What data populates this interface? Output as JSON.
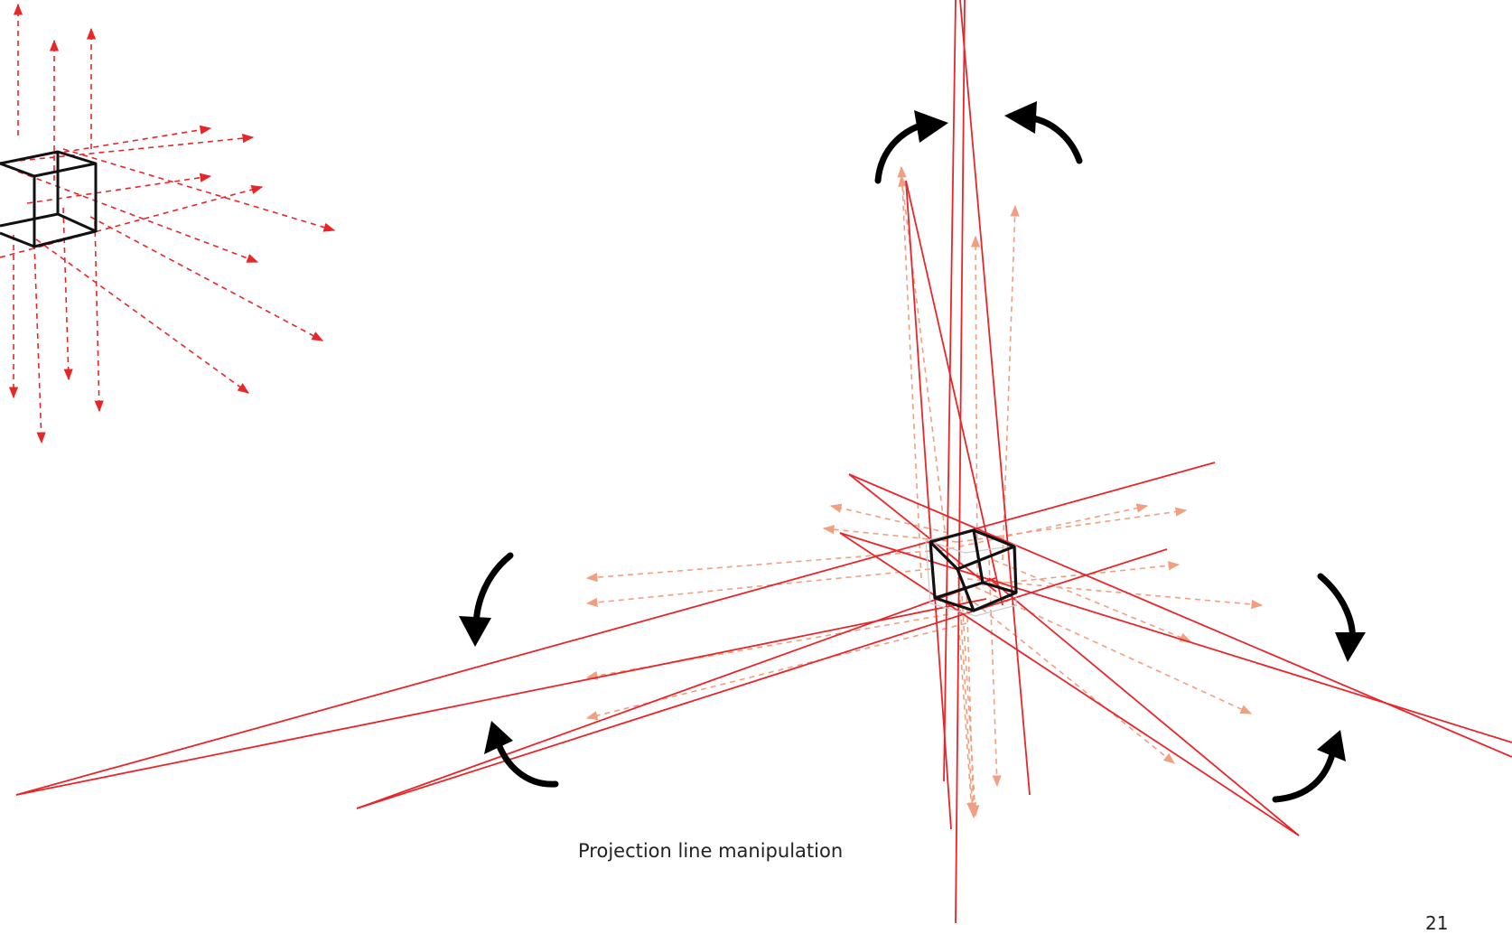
{
  "caption": "Projection line manipulation",
  "page_number": "21",
  "colors": {
    "projection_dashed": "#e8262a",
    "projection_solid": "#e8262a",
    "projection_faded": "#f0a080",
    "cube": "#111111",
    "rotation_arrow": "#000000"
  },
  "icons": [
    "rotation-arrow-icon"
  ]
}
